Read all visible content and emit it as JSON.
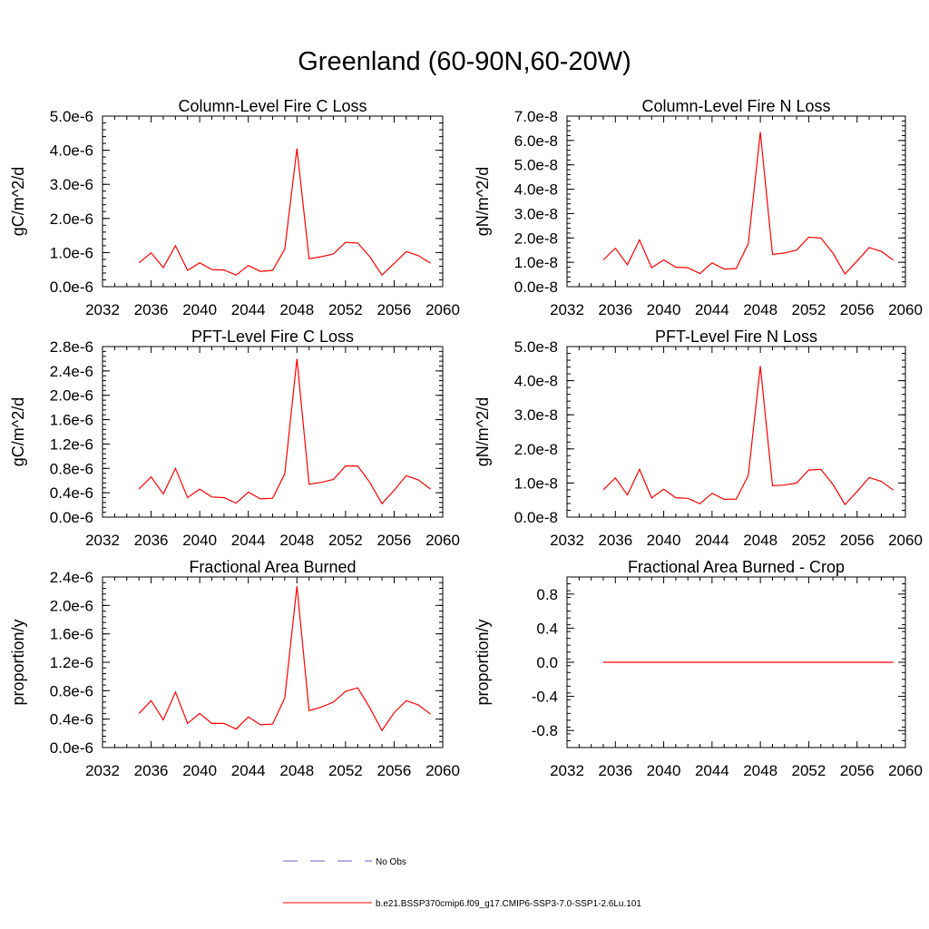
{
  "page": {
    "title": "Greenland (60-90N,60-20W)"
  },
  "legend": {
    "entries": [
      {
        "label": "No Obs",
        "color": "#6666cc",
        "style": "dashed"
      },
      {
        "label": "b.e21.BSSP370cmip6.f09_g17.CMIP6-SSP3-7.0-SSP1-2.6Lu.101",
        "color": "#ff0000",
        "style": "solid"
      }
    ]
  },
  "chart_data": [
    {
      "type": "line",
      "title": "Column-Level Fire C Loss",
      "ylabel": "gC/m^2/d",
      "xlim": [
        2032,
        2060
      ],
      "ylim": [
        0,
        5e-06
      ],
      "xticks": [
        "2032",
        "2036",
        "2040",
        "2044",
        "2048",
        "2052",
        "2056",
        "2060"
      ],
      "yticks": [
        "0.0e-6",
        "1.0e-6",
        "2.0e-6",
        "3.0e-6",
        "4.0e-6",
        "5.0e-6"
      ],
      "series": [
        {
          "color": "#ff0000",
          "x": [
            2035,
            2036,
            2037,
            2038,
            2039,
            2040,
            2041,
            2042,
            2043,
            2044,
            2045,
            2046,
            2047,
            2048,
            2049,
            2050,
            2051,
            2052,
            2053,
            2054,
            2055,
            2056,
            2057,
            2058,
            2059
          ],
          "y": [
            7e-07,
            9.9e-07,
            5.6e-07,
            1.2e-06,
            4.8e-07,
            7e-07,
            5e-07,
            4.9e-07,
            3.4e-07,
            6.2e-07,
            4.5e-07,
            4.8e-07,
            1.1e-06,
            4.05e-06,
            8.2e-07,
            8.8e-07,
            9.6e-07,
            1.3e-06,
            1.28e-06,
            8.8e-07,
            3.4e-07,
            6.8e-07,
            1.03e-06,
            9.1e-07,
            6.9e-07
          ]
        }
      ]
    },
    {
      "type": "line",
      "title": "Column-Level Fire N Loss",
      "ylabel": "gN/m^2/d",
      "xlim": [
        2032,
        2060
      ],
      "ylim": [
        0,
        7e-08
      ],
      "xticks": [
        "2032",
        "2036",
        "2040",
        "2044",
        "2048",
        "2052",
        "2056",
        "2060"
      ],
      "yticks": [
        "0.0e-8",
        "1.0e-8",
        "2.0e-8",
        "3.0e-8",
        "4.0e-8",
        "5.0e-8",
        "6.0e-8",
        "7.0e-8"
      ],
      "series": [
        {
          "color": "#ff0000",
          "x": [
            2035,
            2036,
            2037,
            2038,
            2039,
            2040,
            2041,
            2042,
            2043,
            2044,
            2045,
            2046,
            2047,
            2048,
            2049,
            2050,
            2051,
            2052,
            2053,
            2054,
            2055,
            2056,
            2057,
            2058,
            2059
          ],
          "y": [
            1.1e-08,
            1.58e-08,
            9e-09,
            1.92e-08,
            7.8e-09,
            1.1e-08,
            8e-09,
            7.8e-09,
            5.4e-09,
            9.8e-09,
            7.2e-09,
            7.5e-09,
            1.76e-08,
            6.35e-08,
            1.32e-08,
            1.38e-08,
            1.5e-08,
            2.03e-08,
            2e-08,
            1.38e-08,
            5.2e-09,
            1.05e-08,
            1.61e-08,
            1.45e-08,
            1.09e-08
          ]
        }
      ]
    },
    {
      "type": "line",
      "title": "PFT-Level Fire C Loss",
      "ylabel": "gC/m^2/d",
      "xlim": [
        2032,
        2060
      ],
      "ylim": [
        0,
        2.8e-06
      ],
      "xticks": [
        "2032",
        "2036",
        "2040",
        "2044",
        "2048",
        "2052",
        "2056",
        "2060"
      ],
      "yticks": [
        "0.0e-6",
        "0.4e-6",
        "0.8e-6",
        "1.2e-6",
        "1.6e-6",
        "2.0e-6",
        "2.4e-6",
        "2.8e-6"
      ],
      "series": [
        {
          "color": "#ff0000",
          "x": [
            2035,
            2036,
            2037,
            2038,
            2039,
            2040,
            2041,
            2042,
            2043,
            2044,
            2045,
            2046,
            2047,
            2048,
            2049,
            2050,
            2051,
            2052,
            2053,
            2054,
            2055,
            2056,
            2057,
            2058,
            2059
          ],
          "y": [
            4.6e-07,
            6.6e-07,
            3.8e-07,
            8e-07,
            3.2e-07,
            4.6e-07,
            3.3e-07,
            3.2e-07,
            2.3e-07,
            4.1e-07,
            3e-07,
            3.1e-07,
            7.1e-07,
            2.6e-06,
            5.4e-07,
            5.7e-07,
            6.2e-07,
            8.4e-07,
            8.4e-07,
            5.7e-07,
            2.2e-07,
            4.4e-07,
            6.8e-07,
            6.1e-07,
            4.6e-07
          ]
        }
      ]
    },
    {
      "type": "line",
      "title": "PFT-Level Fire N Loss",
      "ylabel": "gN/m^2/d",
      "xlim": [
        2032,
        2060
      ],
      "ylim": [
        0,
        5e-08
      ],
      "xticks": [
        "2032",
        "2036",
        "2040",
        "2044",
        "2048",
        "2052",
        "2056",
        "2060"
      ],
      "yticks": [
        "0.0e-8",
        "1.0e-8",
        "2.0e-8",
        "3.0e-8",
        "4.0e-8",
        "5.0e-8"
      ],
      "series": [
        {
          "color": "#ff0000",
          "x": [
            2035,
            2036,
            2037,
            2038,
            2039,
            2040,
            2041,
            2042,
            2043,
            2044,
            2045,
            2046,
            2047,
            2048,
            2049,
            2050,
            2051,
            2052,
            2053,
            2054,
            2055,
            2056,
            2057,
            2058,
            2059
          ],
          "y": [
            8e-09,
            1.15e-08,
            6.5e-09,
            1.4e-08,
            5.6e-09,
            8.2e-09,
            5.7e-09,
            5.5e-09,
            3.9e-09,
            7e-09,
            5.2e-09,
            5.3e-09,
            1.22e-08,
            4.43e-08,
            9.2e-09,
            9.4e-09,
            1e-08,
            1.38e-08,
            1.4e-08,
            9.6e-09,
            3.7e-09,
            7.5e-09,
            1.16e-08,
            1.05e-08,
            7.9e-09
          ]
        }
      ]
    },
    {
      "type": "line",
      "title": "Fractional Area Burned",
      "ylabel": "proportion/y",
      "xlim": [
        2032,
        2060
      ],
      "ylim": [
        0,
        2.4e-06
      ],
      "xticks": [
        "2032",
        "2036",
        "2040",
        "2044",
        "2048",
        "2052",
        "2056",
        "2060"
      ],
      "yticks": [
        "0.0e-6",
        "0.4e-6",
        "0.8e-6",
        "1.2e-6",
        "1.6e-6",
        "2.0e-6",
        "2.4e-6"
      ],
      "series": [
        {
          "color": "#ff0000",
          "x": [
            2035,
            2036,
            2037,
            2038,
            2039,
            2040,
            2041,
            2042,
            2043,
            2044,
            2045,
            2046,
            2047,
            2048,
            2049,
            2050,
            2051,
            2052,
            2053,
            2054,
            2055,
            2056,
            2057,
            2058,
            2059
          ],
          "y": [
            4.8e-07,
            6.6e-07,
            3.9e-07,
            7.8e-07,
            3.4e-07,
            4.8e-07,
            3.4e-07,
            3.4e-07,
            2.6e-07,
            4.3e-07,
            3.2e-07,
            3.3e-07,
            7e-07,
            2.27e-06,
            5.2e-07,
            5.7e-07,
            6.4e-07,
            7.9e-07,
            8.4e-07,
            5.6e-07,
            2.4e-07,
            4.9e-07,
            6.6e-07,
            6e-07,
            4.7e-07
          ]
        }
      ]
    },
    {
      "type": "line",
      "title": "Fractional Area Burned - Crop",
      "ylabel": "proportion/y",
      "xlim": [
        2032,
        2060
      ],
      "ylim": [
        -1.0,
        1.0
      ],
      "xticks": [
        "2032",
        "2036",
        "2040",
        "2044",
        "2048",
        "2052",
        "2056",
        "2060"
      ],
      "yticks": [
        "-0.8",
        "-0.4",
        "0.0",
        "0.4",
        "0.8"
      ],
      "series": [
        {
          "color": "#ff0000",
          "x": [
            2035,
            2036,
            2037,
            2038,
            2039,
            2040,
            2041,
            2042,
            2043,
            2044,
            2045,
            2046,
            2047,
            2048,
            2049,
            2050,
            2051,
            2052,
            2053,
            2054,
            2055,
            2056,
            2057,
            2058,
            2059
          ],
          "y": [
            0,
            0,
            0,
            0,
            0,
            0,
            0,
            0,
            0,
            0,
            0,
            0,
            0,
            0,
            0,
            0,
            0,
            0,
            0,
            0,
            0,
            0,
            0,
            0,
            0
          ]
        }
      ]
    }
  ]
}
